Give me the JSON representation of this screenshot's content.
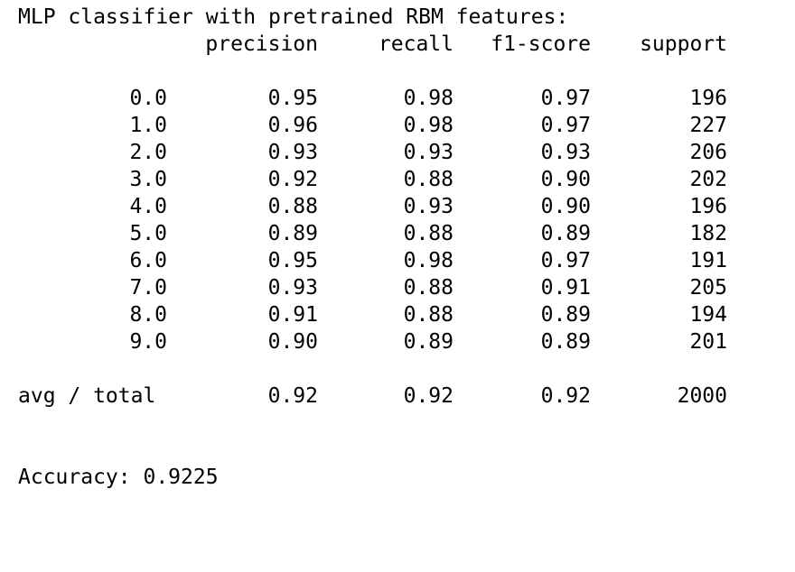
{
  "title": "MLP classifier with pretrained RBM features:",
  "headers": {
    "precision": "precision",
    "recall": "recall",
    "f1": "f1-score",
    "support": "support"
  },
  "rows": [
    {
      "label": "0.0",
      "precision": "0.95",
      "recall": "0.98",
      "f1": "0.97",
      "support": "196"
    },
    {
      "label": "1.0",
      "precision": "0.96",
      "recall": "0.98",
      "f1": "0.97",
      "support": "227"
    },
    {
      "label": "2.0",
      "precision": "0.93",
      "recall": "0.93",
      "f1": "0.93",
      "support": "206"
    },
    {
      "label": "3.0",
      "precision": "0.92",
      "recall": "0.88",
      "f1": "0.90",
      "support": "202"
    },
    {
      "label": "4.0",
      "precision": "0.88",
      "recall": "0.93",
      "f1": "0.90",
      "support": "196"
    },
    {
      "label": "5.0",
      "precision": "0.89",
      "recall": "0.88",
      "f1": "0.89",
      "support": "182"
    },
    {
      "label": "6.0",
      "precision": "0.95",
      "recall": "0.98",
      "f1": "0.97",
      "support": "191"
    },
    {
      "label": "7.0",
      "precision": "0.93",
      "recall": "0.88",
      "f1": "0.91",
      "support": "205"
    },
    {
      "label": "8.0",
      "precision": "0.91",
      "recall": "0.88",
      "f1": "0.89",
      "support": "194"
    },
    {
      "label": "9.0",
      "precision": "0.90",
      "recall": "0.89",
      "f1": "0.89",
      "support": "201"
    }
  ],
  "total": {
    "label": "avg / total",
    "precision": "0.92",
    "recall": "0.92",
    "f1": "0.92",
    "support": "2000"
  },
  "accuracy": "Accuracy: 0.9225"
}
